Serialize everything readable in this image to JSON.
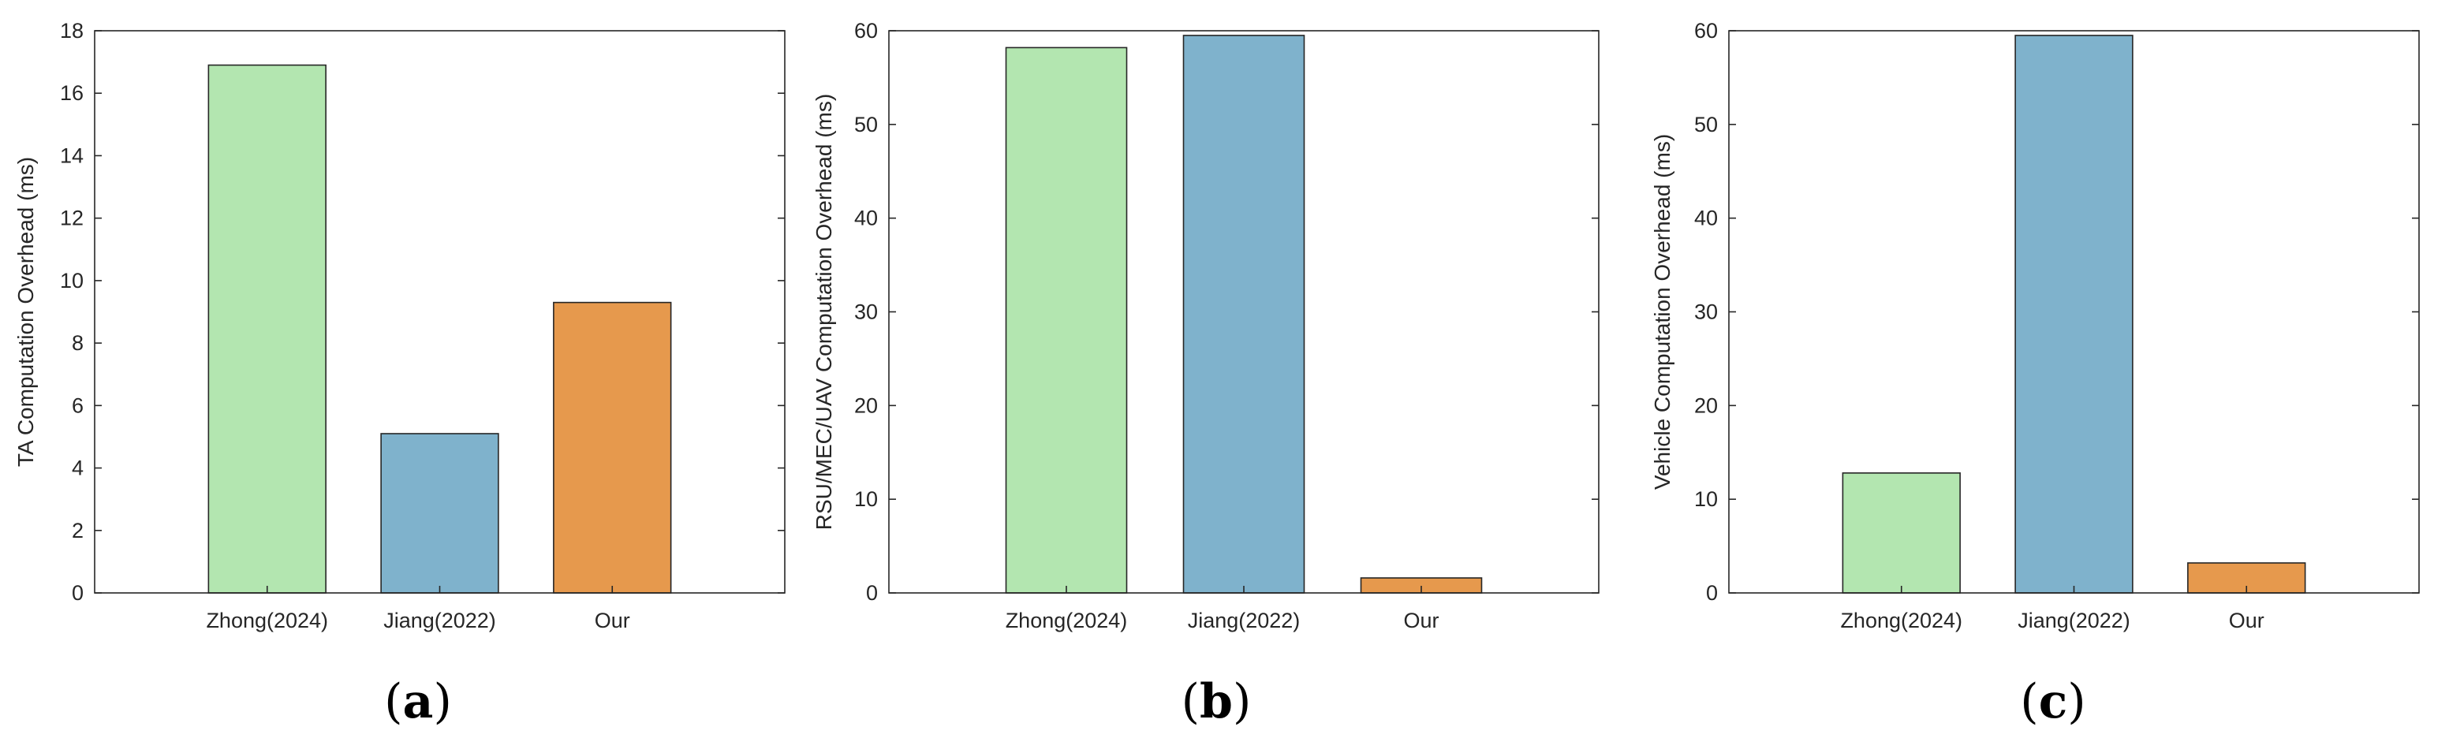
{
  "chart_data": [
    {
      "type": "bar",
      "panel_label": {
        "open": "(",
        "letter": "a",
        "close": ")"
      },
      "categories": [
        "Zhong(2024)",
        "Jiang(2022)",
        "Our"
      ],
      "values": [
        16.9,
        5.1,
        9.3
      ],
      "colors": [
        "#b3e6b0",
        "#7fb2cc",
        "#e6994d"
      ],
      "ylabel": "TA Computation Overhead (ms)",
      "ylim": [
        0,
        18
      ],
      "yticks": [
        "0",
        "2",
        "4",
        "6",
        "8",
        "10",
        "12",
        "14",
        "16",
        "18"
      ],
      "grid": false,
      "legend": "none"
    },
    {
      "type": "bar",
      "panel_label": {
        "open": "(",
        "letter": "b",
        "close": ")"
      },
      "categories": [
        "Zhong(2024)",
        "Jiang(2022)",
        "Our"
      ],
      "values": [
        58.2,
        59.5,
        1.6
      ],
      "colors": [
        "#b3e6b0",
        "#7fb2cc",
        "#e6994d"
      ],
      "ylabel": "RSU/MEC/UAV Computation Overhead (ms)",
      "ylim": [
        0,
        60
      ],
      "yticks": [
        "0",
        "10",
        "20",
        "30",
        "40",
        "50",
        "60"
      ],
      "grid": false,
      "legend": "none"
    },
    {
      "type": "bar",
      "panel_label": {
        "open": "(",
        "letter": "c",
        "close": ")"
      },
      "categories": [
        "Zhong(2024)",
        "Jiang(2022)",
        "Our"
      ],
      "values": [
        12.8,
        59.5,
        3.2
      ],
      "colors": [
        "#b3e6b0",
        "#7fb2cc",
        "#e6994d"
      ],
      "ylabel": "Vehicle Computation Overhead (ms)",
      "ylim": [
        0,
        60
      ],
      "yticks": [
        "0",
        "10",
        "20",
        "30",
        "40",
        "50",
        "60"
      ],
      "grid": false,
      "legend": "none"
    }
  ]
}
